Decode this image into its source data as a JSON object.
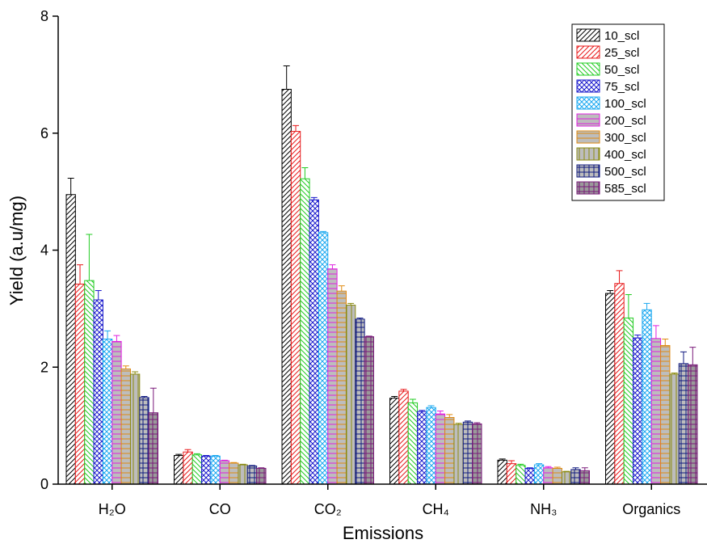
{
  "chart_data": {
    "type": "bar",
    "x_label": "Emissions",
    "y_label": "Yield (a.u/mg)",
    "categories": [
      "H₂O",
      "CO",
      "CO₂",
      "CH₄",
      "NH₃",
      "Organics"
    ],
    "ylim": [
      0,
      8
    ],
    "yticks": [
      0,
      2,
      4,
      6,
      8
    ],
    "series": [
      {
        "name": "10_scl",
        "color": "#000000",
        "values": [
          4.95,
          0.49,
          6.75,
          1.47,
          0.41,
          3.26
        ],
        "errors": [
          0.28,
          0.02,
          0.4,
          0.03,
          0.02,
          0.05
        ]
      },
      {
        "name": "25_scl",
        "color": "#e8191a",
        "values": [
          3.42,
          0.55,
          6.03,
          1.59,
          0.35,
          3.43
        ],
        "errors": [
          0.33,
          0.04,
          0.1,
          0.03,
          0.05,
          0.22
        ]
      },
      {
        "name": "50_scl",
        "color": "#22cc22",
        "values": [
          3.48,
          0.5,
          5.22,
          1.39,
          0.32,
          2.84
        ],
        "errors": [
          0.79,
          0.02,
          0.19,
          0.06,
          0.02,
          0.4
        ]
      },
      {
        "name": "75_scl",
        "color": "#1a1acc",
        "values": [
          3.15,
          0.48,
          4.86,
          1.24,
          0.27,
          2.5
        ],
        "errors": [
          0.16,
          0.01,
          0.04,
          0.02,
          0.01,
          0.05
        ]
      },
      {
        "name": "100_scl",
        "color": "#1aa8f0",
        "values": [
          2.48,
          0.48,
          4.3,
          1.31,
          0.33,
          2.98
        ],
        "errors": [
          0.14,
          0.01,
          0.02,
          0.03,
          0.02,
          0.11
        ]
      },
      {
        "name": "200_scl",
        "color": "#e020e0",
        "values": [
          2.44,
          0.4,
          3.68,
          1.2,
          0.28,
          2.49
        ],
        "errors": [
          0.1,
          0.01,
          0.07,
          0.05,
          0.02,
          0.22
        ]
      },
      {
        "name": "300_scl",
        "color": "#e08a10",
        "values": [
          1.97,
          0.36,
          3.3,
          1.14,
          0.27,
          2.37
        ],
        "errors": [
          0.05,
          0.01,
          0.09,
          0.05,
          0.02,
          0.11
        ]
      },
      {
        "name": "400_scl",
        "color": "#8a8a10",
        "values": [
          1.88,
          0.33,
          3.06,
          1.02,
          0.21,
          1.88
        ],
        "errors": [
          0.04,
          0.01,
          0.03,
          0.02,
          0.01,
          0.02
        ]
      },
      {
        "name": "500_scl",
        "color": "#101a80",
        "values": [
          1.48,
          0.31,
          2.82,
          1.06,
          0.25,
          2.06
        ],
        "errors": [
          0.02,
          0.01,
          0.02,
          0.02,
          0.03,
          0.2
        ]
      },
      {
        "name": "585_scl",
        "color": "#7a1a7a",
        "values": [
          1.22,
          0.27,
          2.52,
          1.03,
          0.23,
          2.04
        ],
        "errors": [
          0.42,
          0.01,
          0.01,
          0.02,
          0.05,
          0.3
        ]
      }
    ]
  }
}
